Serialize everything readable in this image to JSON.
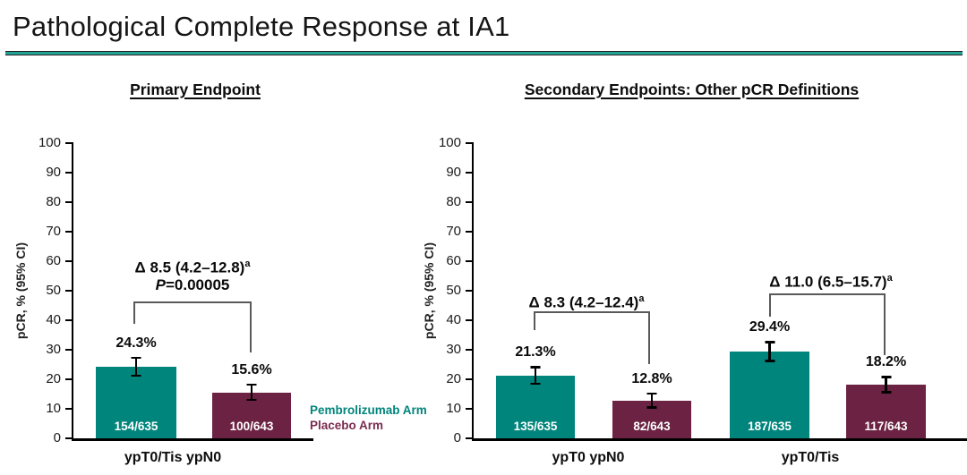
{
  "title": "Pathological Complete Response at IA1",
  "accent_teal": "#00857C",
  "accent_maroon": "#6C2343",
  "rule_color": "#21A295",
  "legend": {
    "items": [
      {
        "label": "Pembrolizumab Arm",
        "color": "#00857C"
      },
      {
        "label": "Placebo Arm",
        "color": "#7B2C4E"
      }
    ]
  },
  "chart_data": [
    {
      "type": "bar",
      "title": "Primary Endpoint",
      "ylabel": "pCR, % (95% CI)",
      "ylim": [
        0,
        100
      ],
      "yticks": [
        0,
        10,
        20,
        30,
        40,
        50,
        60,
        70,
        80,
        90,
        100
      ],
      "grid": "off",
      "categories": [
        "ypT0/Tis ypN0"
      ],
      "series": [
        {
          "name": "Pembrolizumab Arm",
          "color": "#00857C",
          "values": [
            24.3
          ],
          "value_labels": [
            "24.3%"
          ],
          "counts": [
            "154/635"
          ],
          "ci_half_est": [
            3.4
          ]
        },
        {
          "name": "Placebo Arm",
          "color": "#6C2343",
          "values": [
            15.6
          ],
          "value_labels": [
            "15.6%"
          ],
          "counts": [
            "100/643"
          ],
          "ci_half_est": [
            3.0
          ]
        }
      ],
      "annotations": [
        {
          "delta": "Δ 8.5 (4.2–12.8)",
          "sup": "a",
          "delta_value": 8.5,
          "delta_ci": [
            4.2,
            12.8
          ],
          "p_label": "P",
          "p_rest": "=0.00005"
        }
      ]
    },
    {
      "type": "bar",
      "title": "Secondary Endpoints: Other pCR Definitions",
      "ylabel": "pCR, % (95% CI)",
      "ylim": [
        0,
        100
      ],
      "yticks": [
        0,
        10,
        20,
        30,
        40,
        50,
        60,
        70,
        80,
        90,
        100
      ],
      "grid": "off",
      "categories": [
        "ypT0 ypN0",
        "ypT0/Tis"
      ],
      "series": [
        {
          "name": "Pembrolizumab Arm",
          "color": "#00857C",
          "values": [
            21.3,
            29.4
          ],
          "value_labels": [
            "21.3%",
            "29.4%"
          ],
          "counts": [
            "135/635",
            "187/635"
          ],
          "ci_half_est": [
            3.2,
            3.6
          ]
        },
        {
          "name": "Placebo Arm",
          "color": "#6C2343",
          "values": [
            12.8,
            18.2
          ],
          "value_labels": [
            "12.8%",
            "18.2%"
          ],
          "counts": [
            "82/643",
            "117/643"
          ],
          "ci_half_est": [
            2.7,
            3.0
          ]
        }
      ],
      "annotations": [
        {
          "delta": "Δ 8.3 (4.2–12.4)",
          "sup": "a",
          "delta_value": 8.3,
          "delta_ci": [
            4.2,
            12.4
          ]
        },
        {
          "delta": "Δ 11.0 (6.5–15.7)",
          "sup": "a",
          "delta_value": 11.0,
          "delta_ci": [
            6.5,
            15.7
          ]
        }
      ]
    }
  ]
}
